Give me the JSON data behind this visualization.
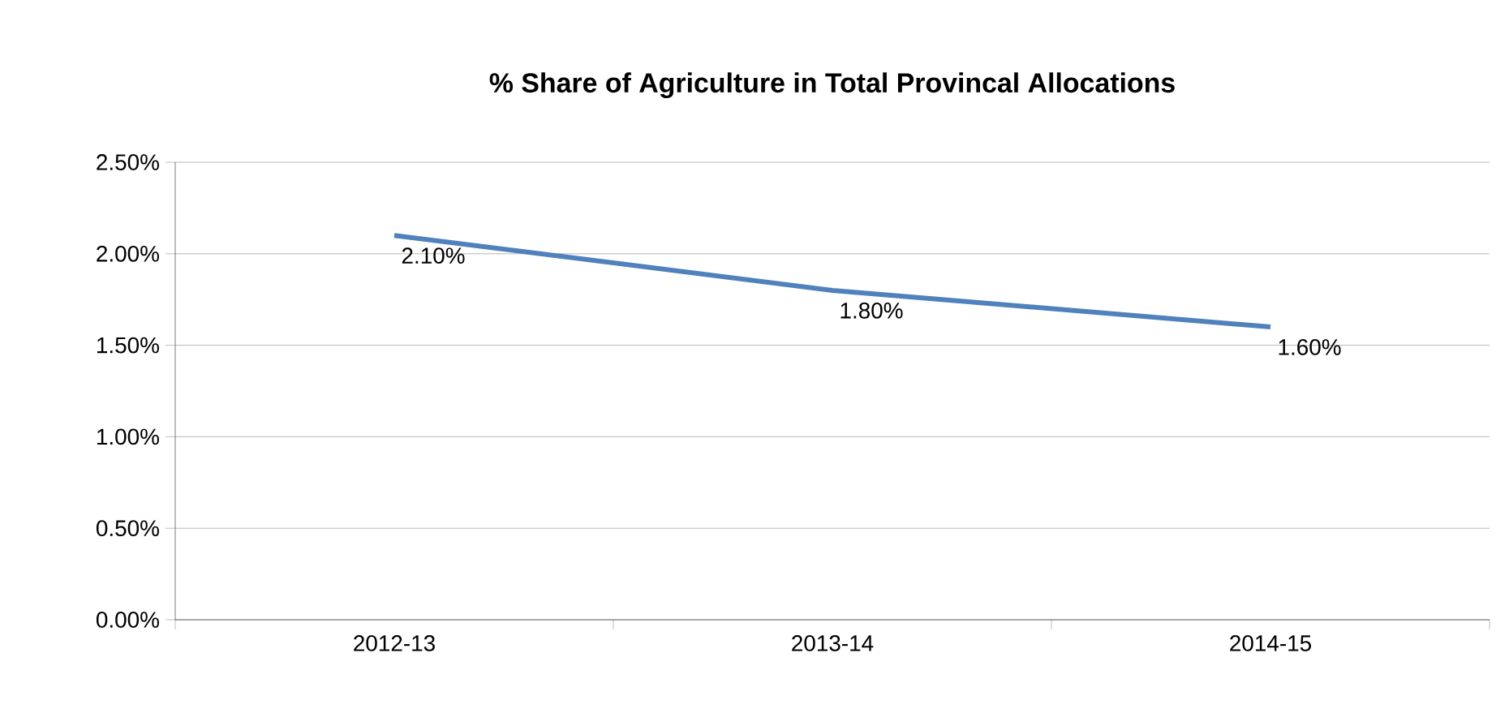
{
  "chart_data": {
    "type": "line",
    "title": "% Share of Agriculture in Total Provincal Allocations",
    "categories": [
      "2012-13",
      "2013-14",
      "2014-15"
    ],
    "values": [
      2.1,
      1.8,
      1.6
    ],
    "value_labels": [
      "2.10%",
      "1.80%",
      "1.60%"
    ],
    "color": "#4f81bd",
    "ylim": [
      0,
      2.5
    ],
    "yticks": [
      {
        "value": 0,
        "label": "0.00%"
      },
      {
        "value": 0.5,
        "label": "0.50%"
      },
      {
        "value": 1,
        "label": "1.00%"
      },
      {
        "value": 1.5,
        "label": "1.50%"
      },
      {
        "value": 2,
        "label": "2.00%"
      },
      {
        "value": 2.5,
        "label": "2.50%"
      }
    ],
    "grid": "y",
    "marker": "none",
    "line_style": "solid"
  }
}
